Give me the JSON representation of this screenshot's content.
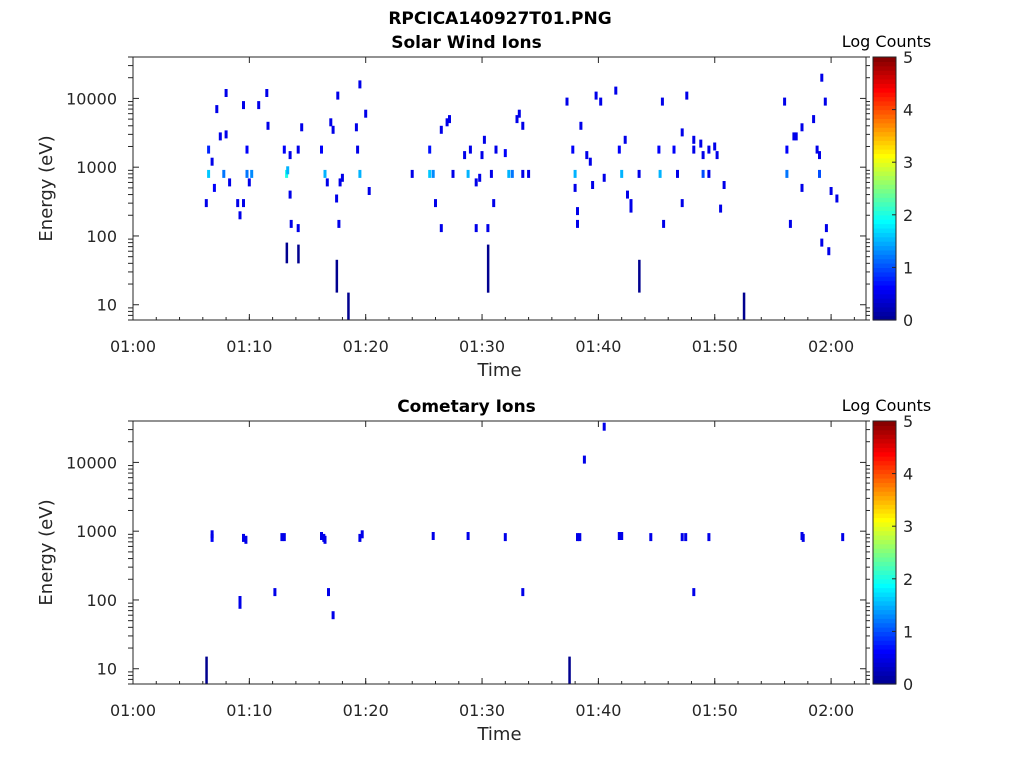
{
  "figure_title": "RPCICA140927T01.PNG",
  "colormap": [
    "#00008f",
    "#0000ff",
    "#0080ff",
    "#00ffff",
    "#80ff80",
    "#ffff00",
    "#ff8000",
    "#ff0000",
    "#800000"
  ],
  "chart_data": [
    {
      "type": "heatmap",
      "title": "Solar Wind Ions",
      "xlabel": "Time",
      "ylabel": "Energy (eV)",
      "yscale": "log",
      "ylim": [
        6,
        40000
      ],
      "xlim_minutes": [
        60,
        123
      ],
      "x_ticks": [
        "01:00",
        "01:10",
        "01:20",
        "01:30",
        "01:40",
        "01:50",
        "02:00"
      ],
      "y_ticks": [
        "10",
        "100",
        "1000",
        "10000"
      ],
      "colorbar": {
        "label": "Log Counts",
        "range": [
          0,
          5
        ],
        "ticks": [
          "0",
          "1",
          "2",
          "3",
          "4",
          "5"
        ]
      },
      "cells": [
        [
          66.3,
          300,
          0.5
        ],
        [
          66.5,
          800,
          1.6
        ],
        [
          66.5,
          1800,
          0.8
        ],
        [
          66.8,
          1200,
          0.5
        ],
        [
          67,
          500,
          0.6
        ],
        [
          67.2,
          7000,
          0.5
        ],
        [
          67.5,
          2800,
          0.5
        ],
        [
          67.8,
          800,
          1.2
        ],
        [
          68,
          12000,
          0.5
        ],
        [
          68,
          3000,
          0.5
        ],
        [
          68.3,
          600,
          0.5
        ],
        [
          69,
          300,
          0.5
        ],
        [
          69.2,
          200,
          0.5
        ],
        [
          69.5,
          8000,
          0.5
        ],
        [
          69.5,
          300,
          0.5
        ],
        [
          69.8,
          1800,
          0.6
        ],
        [
          69.8,
          800,
          1.2
        ],
        [
          70,
          600,
          0.5
        ],
        [
          70.2,
          800,
          1.3
        ],
        [
          70.8,
          8000,
          0.5
        ],
        [
          71.5,
          12000,
          0.5
        ],
        [
          71.6,
          4000,
          0.5
        ],
        [
          73,
          1800,
          0.6
        ],
        [
          73.2,
          800,
          2.0
        ],
        [
          73.3,
          900,
          1.5
        ],
        [
          73.5,
          1500,
          0.5
        ],
        [
          73.5,
          400,
          0.5
        ],
        [
          74.5,
          3800,
          0.5
        ],
        [
          74.2,
          1800,
          0.5
        ],
        [
          73.6,
          150,
          0.5
        ],
        [
          74.2,
          130,
          0.5
        ],
        [
          76.2,
          1800,
          0.6
        ],
        [
          76.5,
          800,
          1.5
        ],
        [
          76.7,
          600,
          0.5
        ],
        [
          77,
          4500,
          0.5
        ],
        [
          77.2,
          3500,
          0.5
        ],
        [
          77.5,
          350,
          0.5
        ],
        [
          77.7,
          150,
          0.5
        ],
        [
          77.8,
          600,
          0.5
        ],
        [
          78,
          700,
          0.5
        ],
        [
          77.6,
          11000,
          0.5
        ],
        [
          79.2,
          3800,
          0.5
        ],
        [
          79.5,
          16000,
          0.5
        ],
        [
          79.5,
          800,
          1.5
        ],
        [
          79.3,
          1800,
          0.5
        ],
        [
          80,
          6000,
          0.5
        ],
        [
          80.3,
          450,
          0.5
        ],
        [
          84,
          800,
          0.5
        ],
        [
          85.5,
          800,
          1.6
        ],
        [
          85.5,
          1800,
          0.7
        ],
        [
          85.8,
          800,
          1.3
        ],
        [
          86,
          300,
          0.5
        ],
        [
          86.5,
          3500,
          0.5
        ],
        [
          86.5,
          130,
          0.5
        ],
        [
          87,
          4500,
          0.5
        ],
        [
          87.2,
          5000,
          0.5
        ],
        [
          87.5,
          800,
          0.5
        ],
        [
          88.5,
          1500,
          0.5
        ],
        [
          88.8,
          800,
          1.5
        ],
        [
          89,
          1800,
          0.5
        ],
        [
          89.5,
          600,
          0.5
        ],
        [
          89.5,
          130,
          0.5
        ],
        [
          89.8,
          700,
          0.5
        ],
        [
          90,
          1500,
          0.5
        ],
        [
          90.2,
          2500,
          0.5
        ],
        [
          90.5,
          130,
          0.5
        ],
        [
          90.8,
          800,
          0.5
        ],
        [
          91,
          300,
          0.5
        ],
        [
          91.2,
          1800,
          0.5
        ],
        [
          92,
          1600,
          0.6
        ],
        [
          92.3,
          800,
          1.5
        ],
        [
          92.6,
          800,
          1.2
        ],
        [
          93,
          5000,
          0.5
        ],
        [
          93.2,
          6000,
          0.5
        ],
        [
          93.5,
          4000,
          0.5
        ],
        [
          93.5,
          800,
          0.5
        ],
        [
          94,
          800,
          0.5
        ],
        [
          97.3,
          9000,
          0.5
        ],
        [
          97.8,
          1800,
          0.6
        ],
        [
          98,
          800,
          1.5
        ],
        [
          98,
          500,
          0.5
        ],
        [
          98.2,
          230,
          0.5
        ],
        [
          98.2,
          150,
          0.5
        ],
        [
          98.5,
          4000,
          0.5
        ],
        [
          99,
          1500,
          0.5
        ],
        [
          99.3,
          1200,
          0.5
        ],
        [
          99.5,
          550,
          0.5
        ],
        [
          99.8,
          11000,
          0.5
        ],
        [
          100.2,
          9000,
          0.5
        ],
        [
          100.5,
          700,
          0.5
        ],
        [
          101.5,
          13000,
          0.5
        ],
        [
          101.8,
          1800,
          0.6
        ],
        [
          102,
          800,
          1.5
        ],
        [
          102.3,
          2500,
          0.5
        ],
        [
          102.5,
          400,
          0.5
        ],
        [
          102.8,
          300,
          0.5
        ],
        [
          102.8,
          250,
          0.5
        ],
        [
          103.5,
          800,
          0.5
        ],
        [
          105.2,
          1800,
          0.6
        ],
        [
          105.3,
          800,
          1.5
        ],
        [
          105.5,
          9000,
          0.5
        ],
        [
          105.6,
          150,
          0.5
        ],
        [
          106.5,
          1800,
          0.6
        ],
        [
          106.8,
          800,
          0.5
        ],
        [
          107.2,
          300,
          0.5
        ],
        [
          107.2,
          3200,
          0.5
        ],
        [
          107.6,
          11000,
          0.5
        ],
        [
          108.2,
          1800,
          0.5
        ],
        [
          108.2,
          2500,
          0.5
        ],
        [
          108.8,
          2200,
          0.5
        ],
        [
          109,
          800,
          1.0
        ],
        [
          109,
          1500,
          0.5
        ],
        [
          109.5,
          800,
          0.5
        ],
        [
          109.5,
          1800,
          0.5
        ],
        [
          110,
          2000,
          0.5
        ],
        [
          110.2,
          1500,
          0.5
        ],
        [
          110.5,
          250,
          0.5
        ],
        [
          110.8,
          550,
          0.5
        ],
        [
          116,
          9000,
          0.5
        ],
        [
          116.2,
          1800,
          0.6
        ],
        [
          116.2,
          800,
          1.2
        ],
        [
          116.5,
          150,
          0.5
        ],
        [
          116.8,
          2800,
          0.5
        ],
        [
          117,
          2800,
          0.5
        ],
        [
          117.5,
          500,
          0.5
        ],
        [
          117.5,
          3800,
          0.5
        ],
        [
          118.5,
          5000,
          0.5
        ],
        [
          118.8,
          1800,
          0.5
        ],
        [
          119,
          800,
          1.0
        ],
        [
          119,
          1500,
          0.5
        ],
        [
          119.2,
          20000,
          0.5
        ],
        [
          119.5,
          9000,
          0.5
        ],
        [
          119.6,
          130,
          0.5
        ],
        [
          119.8,
          60,
          0.5
        ],
        [
          120,
          450,
          0.5
        ],
        [
          120.5,
          350,
          0.5
        ],
        [
          119.2,
          80,
          0.5
        ]
      ],
      "streaks": [
        [
          73.2,
          40,
          80
        ],
        [
          74.2,
          40,
          75
        ],
        [
          77.5,
          15,
          45
        ],
        [
          78.5,
          6,
          15
        ],
        [
          90.5,
          15,
          75
        ],
        [
          103.5,
          15,
          45
        ],
        [
          112.5,
          6,
          15
        ]
      ]
    },
    {
      "type": "heatmap",
      "title": "Cometary Ions",
      "xlabel": "Time",
      "ylabel": "Energy (eV)",
      "yscale": "log",
      "ylim": [
        6,
        40000
      ],
      "xlim_minutes": [
        60,
        123
      ],
      "x_ticks": [
        "01:00",
        "01:10",
        "01:20",
        "01:30",
        "01:40",
        "01:50",
        "02:00"
      ],
      "y_ticks": [
        "10",
        "100",
        "1000",
        "10000"
      ],
      "colorbar": {
        "label": "Log Counts",
        "range": [
          0,
          5
        ],
        "ticks": [
          "0",
          "1",
          "2",
          "3",
          "4",
          "5"
        ]
      },
      "cells": [
        [
          66.8,
          800,
          0.6
        ],
        [
          66.8,
          900,
          0.5
        ],
        [
          69.5,
          800,
          0.5
        ],
        [
          69.7,
          750,
          0.5
        ],
        [
          72.8,
          820,
          0.5
        ],
        [
          73,
          820,
          0.5
        ],
        [
          76.2,
          850,
          0.5
        ],
        [
          76.4,
          800,
          0.5
        ],
        [
          76.5,
          750,
          0.5
        ],
        [
          79.5,
          800,
          0.5
        ],
        [
          79.7,
          900,
          0.5
        ],
        [
          85.8,
          850,
          0.5
        ],
        [
          88.8,
          850,
          0.5
        ],
        [
          92,
          820,
          0.5
        ],
        [
          98.2,
          820,
          0.5
        ],
        [
          98.4,
          820,
          0.5
        ],
        [
          101.8,
          850,
          0.5
        ],
        [
          102,
          850,
          0.5
        ],
        [
          104.5,
          820,
          0.5
        ],
        [
          107.2,
          820,
          0.5
        ],
        [
          107.5,
          820,
          0.5
        ],
        [
          109.5,
          820,
          0.5
        ],
        [
          117.5,
          850,
          0.5
        ],
        [
          117.6,
          800,
          0.5
        ],
        [
          121,
          820,
          0.5
        ],
        [
          69.2,
          100,
          0.5
        ],
        [
          69.2,
          85,
          0.5
        ],
        [
          72.2,
          130,
          0.5
        ],
        [
          76.8,
          130,
          0.5
        ],
        [
          77.2,
          60,
          0.5
        ],
        [
          93.5,
          130,
          0.5
        ],
        [
          108.2,
          130,
          0.5
        ],
        [
          98.8,
          11000,
          0.5
        ],
        [
          100.5,
          33000,
          0.5
        ]
      ],
      "streaks": [
        [
          66.3,
          6,
          15
        ],
        [
          97.5,
          6,
          15
        ]
      ]
    }
  ]
}
